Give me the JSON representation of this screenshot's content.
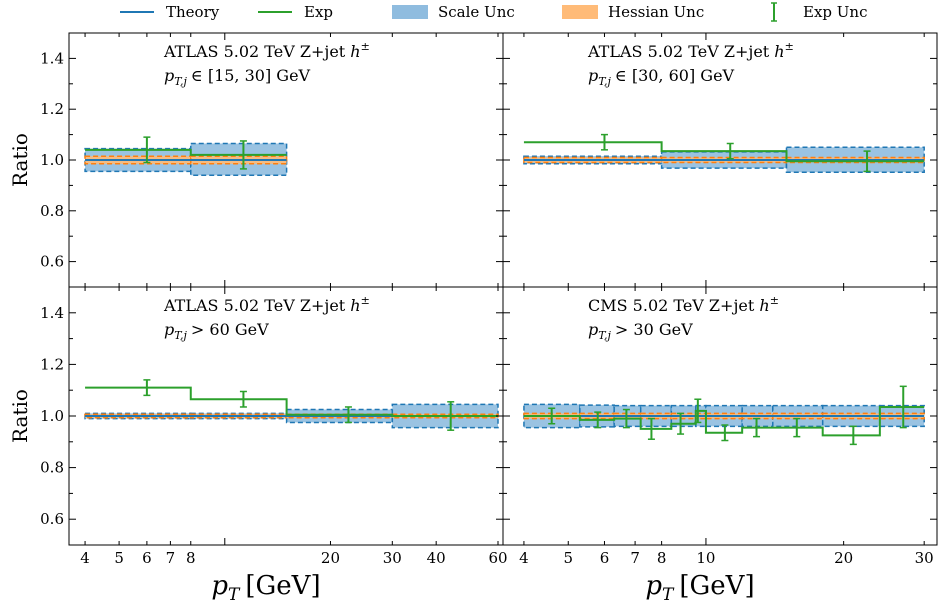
{
  "legend": {
    "placement": "top",
    "entries": [
      {
        "label": "Theory",
        "kind": "line",
        "color": "#1f77b4"
      },
      {
        "label": "Exp",
        "kind": "line",
        "color": "#2ca02c"
      },
      {
        "label": "Scale Unc",
        "kind": "band",
        "color": "#1f77b4"
      },
      {
        "label": "Hessian Unc",
        "kind": "band",
        "color": "#ff7f0e"
      },
      {
        "label": "Exp Unc",
        "kind": "errorbar",
        "color": "#2ca02c"
      }
    ]
  },
  "colors": {
    "theory": "#1f77b4",
    "exp": "#2ca02c",
    "scale_band": "#8fbcdf",
    "hessian_band": "#ffbb78"
  },
  "chart_data": [
    {
      "type": "line",
      "panel": "top-left",
      "title": "ATLAS 5.02 TeV Z+jet",
      "title_symbol": "h",
      "title_sup": "±",
      "subtitle_lhs": "p",
      "subtitle_sub": "T,j",
      "subtitle_rhs": "∈ [15, 30] GeV",
      "ylabel": "Ratio",
      "xlabel": "",
      "xscale": "log",
      "xlim": [
        3.6,
        62
      ],
      "ylim": [
        0.5,
        1.5
      ],
      "xticks": [
        4,
        5,
        6,
        7,
        8,
        10,
        20,
        30,
        40,
        60
      ],
      "xticklabels": [],
      "yticks": [
        0.6,
        0.8,
        1.0,
        1.2,
        1.4
      ],
      "yticklabels": [
        "0.6",
        "0.8",
        "1.0",
        "1.2",
        "1.4"
      ],
      "bins": [
        4,
        8,
        15
      ],
      "theory": [
        1.0,
        1.0
      ],
      "scale_lo": [
        0.955,
        0.94
      ],
      "scale_hi": [
        1.045,
        1.065
      ],
      "hess_lo": [
        0.985,
        0.985
      ],
      "hess_hi": [
        1.015,
        1.015
      ],
      "exp": [
        1.04,
        1.02
      ],
      "exp_x": [
        6,
        11.3
      ],
      "exp_err": [
        0.05,
        0.055
      ]
    },
    {
      "type": "line",
      "panel": "top-right",
      "title": "ATLAS 5.02 TeV Z+jet",
      "title_symbol": "h",
      "title_sup": "±",
      "subtitle_lhs": "p",
      "subtitle_sub": "T,j",
      "subtitle_rhs": "∈ [30, 60] GeV",
      "ylabel": "",
      "xlabel": "",
      "xscale": "log",
      "xlim": [
        3.6,
        32
      ],
      "ylim": [
        0.5,
        1.5
      ],
      "xticks": [
        4,
        5,
        6,
        7,
        8,
        10,
        20,
        30
      ],
      "xticklabels": [],
      "yticks": [
        0.6,
        0.8,
        1.0,
        1.2,
        1.4
      ],
      "yticklabels": [],
      "bins": [
        4,
        8,
        15,
        30
      ],
      "theory": [
        1.0,
        1.0,
        1.0
      ],
      "scale_lo": [
        0.985,
        0.968,
        0.952
      ],
      "scale_hi": [
        1.015,
        1.032,
        1.05
      ],
      "hess_lo": [
        0.99,
        0.99,
        0.99
      ],
      "hess_hi": [
        1.01,
        1.01,
        1.01
      ],
      "exp": [
        1.07,
        1.035,
        0.995
      ],
      "exp_x": [
        6,
        11.3,
        22.5
      ],
      "exp_err": [
        0.03,
        0.03,
        0.04
      ]
    },
    {
      "type": "line",
      "panel": "bottom-left",
      "title": "ATLAS 5.02 TeV Z+jet",
      "title_symbol": "h",
      "title_sup": "±",
      "subtitle_lhs": "p",
      "subtitle_sub": "T,j",
      "subtitle_rhs": "> 60 GeV",
      "ylabel": "Ratio",
      "xlabel_symbol": "p",
      "xlabel_sub": "T",
      "xlabel_unit": "[GeV]",
      "xscale": "log",
      "xlim": [
        3.6,
        62
      ],
      "ylim": [
        0.5,
        1.5
      ],
      "xticks": [
        4,
        5,
        6,
        7,
        8,
        10,
        20,
        30,
        40,
        60
      ],
      "xticklabels": [
        "4",
        "5",
        "6",
        "7",
        "8",
        "",
        "20",
        "30",
        "40",
        "60"
      ],
      "yticks": [
        0.6,
        0.8,
        1.0,
        1.2,
        1.4
      ],
      "yticklabels": [
        "0.6",
        "0.8",
        "1.0",
        "1.2",
        "1.4"
      ],
      "bins": [
        4,
        8,
        15,
        30,
        60
      ],
      "theory": [
        1.0,
        1.0,
        1.0,
        1.0
      ],
      "scale_lo": [
        0.99,
        0.99,
        0.975,
        0.955
      ],
      "scale_hi": [
        1.01,
        1.01,
        1.025,
        1.045
      ],
      "hess_lo": [
        0.993,
        0.993,
        0.993,
        0.993
      ],
      "hess_hi": [
        1.007,
        1.007,
        1.007,
        1.007
      ],
      "exp": [
        1.11,
        1.065,
        1.005,
        1.0
      ],
      "exp_x": [
        6,
        11.3,
        22.5,
        44
      ],
      "exp_err": [
        0.03,
        0.03,
        0.03,
        0.055
      ]
    },
    {
      "type": "line",
      "panel": "bottom-right",
      "title": "CMS 5.02 TeV Z+jet",
      "title_symbol": "h",
      "title_sup": "±",
      "subtitle_lhs": "p",
      "subtitle_sub": "T,j",
      "subtitle_rhs": "> 30 GeV",
      "ylabel": "",
      "xlabel_symbol": "p",
      "xlabel_sub": "T",
      "xlabel_unit": "[GeV]",
      "xscale": "log",
      "xlim": [
        3.6,
        32
      ],
      "ylim": [
        0.5,
        1.5
      ],
      "xticks": [
        4,
        5,
        6,
        7,
        8,
        10,
        20,
        30
      ],
      "xticklabels": [
        "4",
        "5",
        "6",
        "7",
        "8",
        "10",
        "20",
        "30"
      ],
      "yticks": [
        0.6,
        0.8,
        1.0,
        1.2,
        1.4
      ],
      "yticklabels": [],
      "bins": [
        4,
        5.3,
        6.3,
        7.2,
        8.4,
        9.5,
        10,
        12,
        14,
        18,
        24,
        30
      ],
      "theory": [
        1.0,
        1.0,
        1.0,
        1.0,
        1.0,
        1.0,
        1.0,
        1.0,
        1.0,
        1.0,
        1.0
      ],
      "scale_lo": [
        0.955,
        0.958,
        0.96,
        0.96,
        0.96,
        0.96,
        0.96,
        0.96,
        0.96,
        0.96,
        0.96
      ],
      "scale_hi": [
        1.045,
        1.042,
        1.04,
        1.04,
        1.04,
        1.04,
        1.04,
        1.04,
        1.04,
        1.04,
        1.04
      ],
      "hess_lo": [
        0.99,
        0.99,
        0.99,
        0.99,
        0.99,
        0.99,
        0.99,
        0.99,
        0.99,
        0.99,
        0.99
      ],
      "hess_hi": [
        1.01,
        1.01,
        1.01,
        1.01,
        1.01,
        1.01,
        1.01,
        1.01,
        1.01,
        1.01,
        1.01
      ],
      "exp": [
        1.0,
        0.985,
        0.99,
        0.95,
        0.97,
        1.02,
        0.935,
        0.955,
        0.955,
        0.925,
        1.035
      ],
      "exp_x": [
        4.6,
        5.8,
        6.7,
        7.6,
        8.8,
        9.6,
        11,
        12.9,
        15.8,
        21,
        27
      ],
      "exp_err": [
        0.03,
        0.03,
        0.035,
        0.04,
        0.04,
        0.045,
        0.03,
        0.035,
        0.035,
        0.035,
        0.08
      ]
    }
  ]
}
